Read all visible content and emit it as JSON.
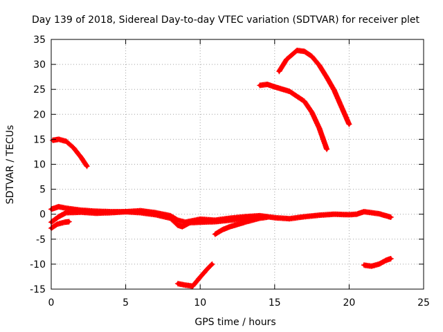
{
  "chart_data": {
    "type": "scatter",
    "title": "Day 139 of 2018, Sidereal Day-to-day VTEC variation (SDTVAR) for receiver plet",
    "xlabel": "GPS time / hours",
    "ylabel": "SDTVAR / TECUs",
    "xlim": [
      0,
      25
    ],
    "ylim": [
      -15,
      35
    ],
    "xticks": [
      0,
      5,
      10,
      15,
      20,
      25
    ],
    "yticks": [
      -15,
      -10,
      -5,
      0,
      5,
      10,
      15,
      20,
      25,
      30,
      35
    ],
    "grid": true,
    "marker": "+",
    "color": "#ff0000",
    "series": [
      {
        "name": "arc-1",
        "points": [
          [
            0.1,
            14.8
          ],
          [
            0.5,
            15.0
          ],
          [
            1.0,
            14.6
          ],
          [
            1.5,
            13.3
          ],
          [
            2.0,
            11.4
          ],
          [
            2.4,
            9.6
          ]
        ]
      },
      {
        "name": "arc-2",
        "points": [
          [
            0.0,
            1.0
          ],
          [
            0.5,
            1.5
          ],
          [
            1.0,
            1.2
          ],
          [
            2.0,
            0.8
          ],
          [
            3.0,
            0.6
          ],
          [
            4.0,
            0.5
          ],
          [
            5.0,
            0.5
          ],
          [
            6.0,
            0.7
          ],
          [
            7.0,
            0.3
          ],
          [
            8.0,
            -0.3
          ],
          [
            8.5,
            -1.2
          ],
          [
            9.0,
            -1.6
          ],
          [
            9.5,
            -1.3
          ],
          [
            10.0,
            -1.0
          ],
          [
            11.0,
            -1.2
          ],
          [
            12.0,
            -0.8
          ],
          [
            13.0,
            -0.5
          ],
          [
            14.0,
            -0.3
          ],
          [
            15.0,
            -0.7
          ],
          [
            16.0,
            -0.9
          ],
          [
            17.0,
            -0.5
          ],
          [
            18.0,
            -0.2
          ],
          [
            19.0,
            0.0
          ],
          [
            20.0,
            -0.1
          ],
          [
            20.5,
            0.0
          ],
          [
            21.0,
            0.5
          ],
          [
            22.0,
            0.1
          ],
          [
            22.8,
            -0.6
          ]
        ]
      },
      {
        "name": "arc-3",
        "points": [
          [
            0.0,
            -1.6
          ],
          [
            0.5,
            -0.5
          ],
          [
            1.0,
            0.3
          ],
          [
            2.0,
            0.4
          ],
          [
            3.0,
            0.2
          ],
          [
            4.0,
            0.3
          ],
          [
            5.0,
            0.5
          ],
          [
            6.0,
            0.3
          ],
          [
            7.0,
            -0.1
          ],
          [
            8.0,
            -0.8
          ],
          [
            8.5,
            -2.2
          ],
          [
            8.8,
            -2.5
          ],
          [
            9.3,
            -1.7
          ],
          [
            10.0,
            -1.6
          ],
          [
            11.0,
            -1.5
          ],
          [
            12.0,
            -1.2
          ],
          [
            13.0,
            -0.9
          ],
          [
            14.0,
            -0.6
          ]
        ]
      },
      {
        "name": "arc-4",
        "points": [
          [
            0.0,
            -2.8
          ],
          [
            0.4,
            -2.0
          ],
          [
            0.9,
            -1.6
          ],
          [
            1.2,
            -1.5
          ]
        ]
      },
      {
        "name": "arc-5",
        "points": [
          [
            8.5,
            -13.9
          ],
          [
            9.0,
            -14.2
          ],
          [
            9.5,
            -14.4
          ],
          [
            10.0,
            -12.6
          ],
          [
            10.5,
            -10.9
          ],
          [
            10.8,
            -10.0
          ]
        ]
      },
      {
        "name": "arc-6",
        "points": [
          [
            11.0,
            -4.0
          ],
          [
            11.5,
            -3.1
          ],
          [
            12.0,
            -2.5
          ],
          [
            13.0,
            -1.6
          ],
          [
            14.0,
            -0.8
          ],
          [
            14.5,
            -0.6
          ]
        ]
      },
      {
        "name": "arc-7",
        "points": [
          [
            14.0,
            25.8
          ],
          [
            14.5,
            26.0
          ],
          [
            15.0,
            25.5
          ],
          [
            16.0,
            24.6
          ],
          [
            17.0,
            22.6
          ],
          [
            17.5,
            20.4
          ],
          [
            18.0,
            17.2
          ],
          [
            18.5,
            13.0
          ]
        ]
      },
      {
        "name": "arc-8",
        "points": [
          [
            15.3,
            28.6
          ],
          [
            15.8,
            31.0
          ],
          [
            16.5,
            32.8
          ],
          [
            17.0,
            32.6
          ],
          [
            17.5,
            31.6
          ],
          [
            18.0,
            29.8
          ],
          [
            18.5,
            27.4
          ],
          [
            19.0,
            24.8
          ],
          [
            19.5,
            21.4
          ],
          [
            20.0,
            18.0
          ]
        ]
      },
      {
        "name": "arc-9",
        "points": [
          [
            21.0,
            -10.2
          ],
          [
            21.5,
            -10.4
          ],
          [
            22.0,
            -10.0
          ],
          [
            22.5,
            -9.2
          ],
          [
            22.8,
            -8.9
          ]
        ]
      }
    ]
  }
}
